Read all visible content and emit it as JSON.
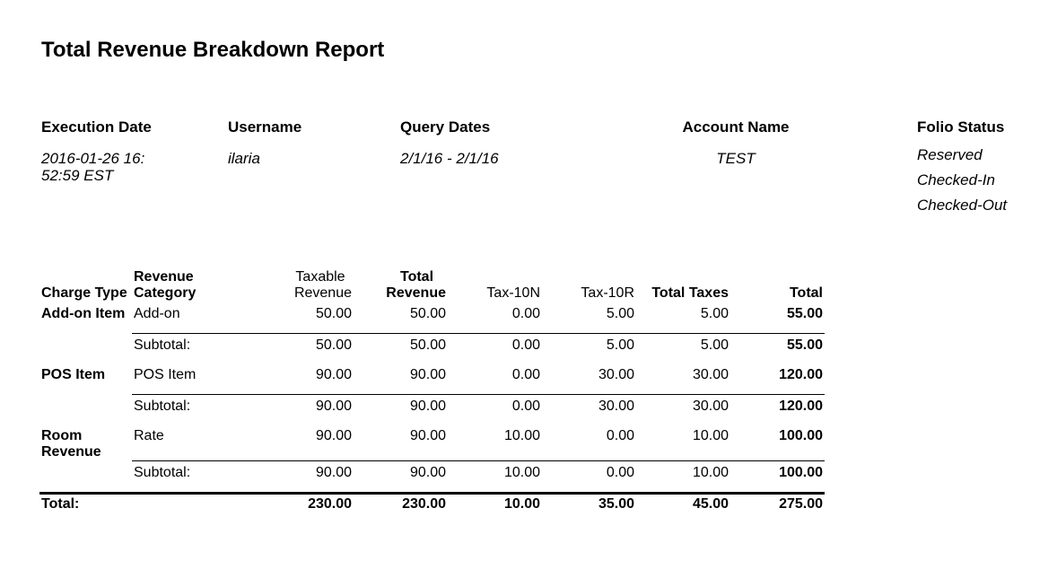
{
  "report": {
    "title": "Total Revenue Breakdown Report"
  },
  "meta": {
    "execution_date": {
      "label": "Execution Date",
      "value_line1": "2016-01-26 16:",
      "value_line2": "52:59 EST"
    },
    "username": {
      "label": "Username",
      "value": "ilaria"
    },
    "query_dates": {
      "label": "Query Dates",
      "value": "2/1/16 - 2/1/16"
    },
    "account_name": {
      "label": "Account Name",
      "value": "TEST"
    },
    "folio_status": {
      "label": "Folio Status",
      "values": [
        "Reserved",
        "Checked-In",
        "Checked-Out"
      ]
    }
  },
  "table": {
    "headers": {
      "charge_type": "Charge Type",
      "revenue_category_1": "Revenue",
      "revenue_category_2": "Category",
      "taxable_revenue_1": "Taxable",
      "taxable_revenue_2": "Revenue",
      "total_revenue_1": "Total",
      "total_revenue_2": "Revenue",
      "tax_10n": "Tax-10N",
      "tax_10r": "Tax-10R",
      "total_taxes": "Total Taxes",
      "total": "Total"
    },
    "groups": [
      {
        "charge_type_1": "Add-on Item",
        "charge_type_2": "",
        "category": "Add-on",
        "row": [
          "50.00",
          "50.00",
          "0.00",
          "5.00",
          "5.00",
          "55.00"
        ],
        "subtotal_label": "Subtotal:",
        "subtotal": [
          "50.00",
          "50.00",
          "0.00",
          "5.00",
          "5.00",
          "55.00"
        ]
      },
      {
        "charge_type_1": "POS Item",
        "charge_type_2": "",
        "category": "POS Item",
        "row": [
          "90.00",
          "90.00",
          "0.00",
          "30.00",
          "30.00",
          "120.00"
        ],
        "subtotal_label": "Subtotal:",
        "subtotal": [
          "90.00",
          "90.00",
          "0.00",
          "30.00",
          "30.00",
          "120.00"
        ]
      },
      {
        "charge_type_1": "Room",
        "charge_type_2": "Revenue",
        "category": "Rate",
        "row": [
          "90.00",
          "90.00",
          "10.00",
          "0.00",
          "10.00",
          "100.00"
        ],
        "subtotal_label": "Subtotal:",
        "subtotal": [
          "90.00",
          "90.00",
          "10.00",
          "0.00",
          "10.00",
          "100.00"
        ]
      }
    ],
    "grand_total": {
      "label": "Total:",
      "values": [
        "230.00",
        "230.00",
        "10.00",
        "35.00",
        "45.00",
        "275.00"
      ]
    }
  }
}
